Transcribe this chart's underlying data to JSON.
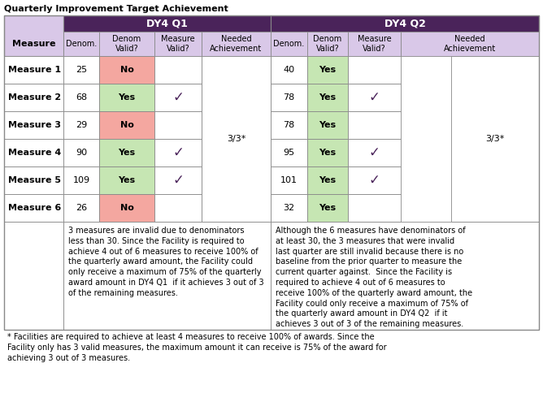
{
  "title": "Quarterly Improvement Target Achievement",
  "background_color": "#ffffff",
  "header1_color": "#4a235a",
  "header2_bg_color": "#d9c8e8",
  "border_color": "#888888",
  "purple_color": "#4a235a",
  "red_cell": "#f4a7a0",
  "green_cell": "#c6e6b3",
  "row_labels": [
    "Measure 1",
    "Measure 2",
    "Measure 3",
    "Measure 4",
    "Measure 5",
    "Measure 6"
  ],
  "q1_denom": [
    25,
    68,
    29,
    90,
    109,
    26
  ],
  "q1_denom_valid": [
    "No",
    "Yes",
    "No",
    "Yes",
    "Yes",
    "No"
  ],
  "q1_measure_valid": [
    false,
    true,
    false,
    true,
    true,
    false
  ],
  "q1_needed": "3/3*",
  "q2_denom": [
    40,
    78,
    78,
    95,
    101,
    32
  ],
  "q2_denom_valid": [
    "Yes",
    "Yes",
    "Yes",
    "Yes",
    "Yes",
    "Yes"
  ],
  "q2_measure_valid": [
    false,
    true,
    false,
    true,
    true,
    false
  ],
  "q2_needed": "3/3*",
  "footnote_left": "3 measures are invalid due to denominators\nless than 30. Since the Facility is required to\nachieve 4 out of 6 measures to receive 100% of\nthe quarterly award amount, the Facility could\nonly receive a maximum of 75% of the quarterly\naward amount in DY4 Q1  if it achieves 3 out of 3\nof the remaining measures.",
  "footnote_right": "Although the 6 measures have denominators of\nat least 30, the 3 measures that were invalid\nlast quarter are still invalid because there is no\nbaseline from the prior quarter to measure the\ncurrent quarter against.  Since the Facility is\nrequired to achieve 4 out of 6 measures to\nreceive 100% of the quarterly award amount, the\nFacility could only receive a maximum of 75% of\nthe quarterly award amount in DY4 Q2  if it\nachieves 3 out of 3 of the remaining measures.",
  "bottom_note": "* Facilities are required to achieve at least 4 measures to receive 100% of awards. Since the\nFacility only has 3 valid measures, the maximum amount it can receive is 75% of the award for\nachieving 3 out of 3 measures."
}
